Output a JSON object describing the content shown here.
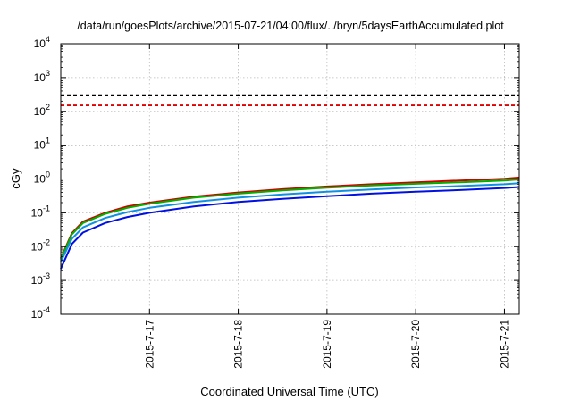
{
  "chart_data": {
    "type": "line",
    "title": "/data/run/goesPlots/archive/2015-07-21/04:00/flux/../bryn/5daysEarthAccumulated.plot",
    "xlabel": "Coordinated Universal Time (UTC)",
    "ylabel": "cGy",
    "y_scale": "log",
    "ylim": [
      0.0001,
      10000
    ],
    "xlim": [
      "2015-07-16 00:00",
      "2015-07-21 04:00"
    ],
    "x_ticks": [
      "2015-7-17",
      "2015-7-18",
      "2015-7-19",
      "2015-7-20",
      "2015-7-21"
    ],
    "y_ticks": [
      {
        "value": 0.0001,
        "base": "10",
        "exp": "-4"
      },
      {
        "value": 0.001,
        "base": "10",
        "exp": "-3"
      },
      {
        "value": 0.01,
        "base": "10",
        "exp": "-2"
      },
      {
        "value": 0.1,
        "base": "10",
        "exp": "-1"
      },
      {
        "value": 1,
        "base": "10",
        "exp": "0"
      },
      {
        "value": 10,
        "base": "10",
        "exp": "1"
      },
      {
        "value": 100,
        "base": "10",
        "exp": "2"
      },
      {
        "value": 1000,
        "base": "10",
        "exp": "3"
      },
      {
        "value": 10000,
        "base": "10",
        "exp": "4"
      }
    ],
    "grid": true,
    "reference_lines": [
      {
        "value": 300,
        "color": "#000000",
        "style": "dashed"
      },
      {
        "value": 150,
        "color": "#e00000",
        "style": "dashed"
      }
    ],
    "series": [
      {
        "color": "#d00000",
        "x": [
          "2015-07-16 00:00",
          "2015-07-16 03:00",
          "2015-07-16 06:00",
          "2015-07-16 12:00",
          "2015-07-16 18:00",
          "2015-07-17 00:00",
          "2015-07-17 12:00",
          "2015-07-18 00:00",
          "2015-07-18 12:00",
          "2015-07-19 00:00",
          "2015-07-19 12:00",
          "2015-07-20 00:00",
          "2015-07-20 12:00",
          "2015-07-21 00:00",
          "2015-07-21 04:00"
        ],
        "values": [
          0.0045,
          0.025,
          0.055,
          0.1,
          0.155,
          0.2,
          0.3,
          0.4,
          0.5,
          0.6,
          0.7,
          0.8,
          0.9,
          1.02,
          1.1
        ]
      },
      {
        "color": "#00b000",
        "x": [
          "2015-07-16 00:00",
          "2015-07-16 03:00",
          "2015-07-16 06:00",
          "2015-07-16 12:00",
          "2015-07-16 18:00",
          "2015-07-17 00:00",
          "2015-07-17 12:00",
          "2015-07-18 00:00",
          "2015-07-18 12:00",
          "2015-07-19 00:00",
          "2015-07-19 12:00",
          "2015-07-20 00:00",
          "2015-07-20 12:00",
          "2015-07-21 00:00",
          "2015-07-21 04:00"
        ],
        "values": [
          0.0042,
          0.023,
          0.05,
          0.093,
          0.14,
          0.185,
          0.28,
          0.37,
          0.46,
          0.55,
          0.64,
          0.72,
          0.8,
          0.9,
          0.97
        ]
      },
      {
        "color": "#1090e0",
        "x": [
          "2015-07-16 00:00",
          "2015-07-16 03:00",
          "2015-07-16 06:00",
          "2015-07-16 12:00",
          "2015-07-16 18:00",
          "2015-07-17 00:00",
          "2015-07-17 12:00",
          "2015-07-18 00:00",
          "2015-07-18 12:00",
          "2015-07-19 00:00",
          "2015-07-19 12:00",
          "2015-07-20 00:00",
          "2015-07-20 12:00",
          "2015-07-21 00:00",
          "2015-07-21 04:00"
        ],
        "values": [
          0.0035,
          0.017,
          0.037,
          0.07,
          0.105,
          0.14,
          0.21,
          0.28,
          0.35,
          0.42,
          0.49,
          0.56,
          0.62,
          0.7,
          0.75
        ]
      },
      {
        "color": "#0010e0",
        "x": [
          "2015-07-16 00:00",
          "2015-07-16 03:00",
          "2015-07-16 06:00",
          "2015-07-16 12:00",
          "2015-07-16 18:00",
          "2015-07-17 00:00",
          "2015-07-17 12:00",
          "2015-07-18 00:00",
          "2015-07-18 12:00",
          "2015-07-19 00:00",
          "2015-07-19 12:00",
          "2015-07-20 00:00",
          "2015-07-20 12:00",
          "2015-07-21 00:00",
          "2015-07-21 04:00"
        ],
        "values": [
          0.0022,
          0.012,
          0.026,
          0.05,
          0.075,
          0.1,
          0.155,
          0.21,
          0.26,
          0.31,
          0.37,
          0.42,
          0.47,
          0.54,
          0.58
        ]
      }
    ]
  }
}
